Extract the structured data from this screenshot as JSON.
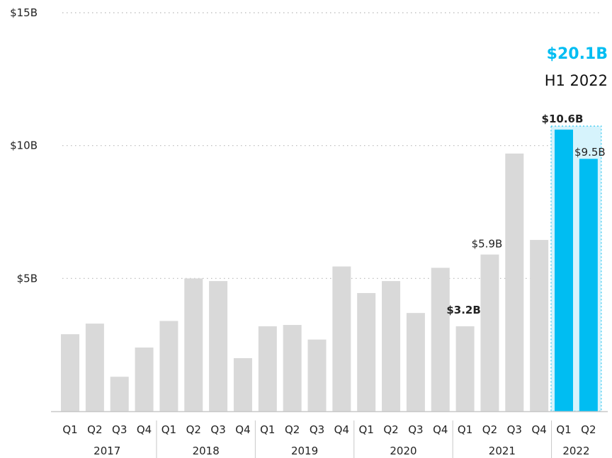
{
  "chart_data": {
    "type": "bar",
    "ylim": [
      0,
      15
    ],
    "y_ticks": [
      {
        "value": 5,
        "label": "$5B"
      },
      {
        "value": 10,
        "label": "$10B"
      },
      {
        "value": 15,
        "label": "$15B"
      }
    ],
    "grid": true,
    "categories": [
      {
        "quarter": "Q1",
        "year": "2017"
      },
      {
        "quarter": "Q2",
        "year": "2017"
      },
      {
        "quarter": "Q3",
        "year": "2017"
      },
      {
        "quarter": "Q4",
        "year": "2017"
      },
      {
        "quarter": "Q1",
        "year": "2018"
      },
      {
        "quarter": "Q2",
        "year": "2018"
      },
      {
        "quarter": "Q3",
        "year": "2018"
      },
      {
        "quarter": "Q4",
        "year": "2018"
      },
      {
        "quarter": "Q1",
        "year": "2019"
      },
      {
        "quarter": "Q2",
        "year": "2019"
      },
      {
        "quarter": "Q3",
        "year": "2019"
      },
      {
        "quarter": "Q4",
        "year": "2019"
      },
      {
        "quarter": "Q1",
        "year": "2020"
      },
      {
        "quarter": "Q2",
        "year": "2020"
      },
      {
        "quarter": "Q3",
        "year": "2020"
      },
      {
        "quarter": "Q4",
        "year": "2020"
      },
      {
        "quarter": "Q1",
        "year": "2021"
      },
      {
        "quarter": "Q2",
        "year": "2021"
      },
      {
        "quarter": "Q3",
        "year": "2021"
      },
      {
        "quarter": "Q4",
        "year": "2021"
      },
      {
        "quarter": "Q1",
        "year": "2022"
      },
      {
        "quarter": "Q2",
        "year": "2022"
      }
    ],
    "years": [
      "2017",
      "2018",
      "2019",
      "2020",
      "2021",
      "2022"
    ],
    "values": [
      2.9,
      3.3,
      1.3,
      2.4,
      3.4,
      5.0,
      4.9,
      2.0,
      3.2,
      3.25,
      2.7,
      5.45,
      4.45,
      4.9,
      3.7,
      5.4,
      3.2,
      5.9,
      9.7,
      6.45,
      10.6,
      9.5
    ],
    "highlighted": [
      20,
      21
    ],
    "data_labels": [
      {
        "index": 16,
        "text": "$3.2B",
        "bold": true
      },
      {
        "index": 17,
        "text": "$5.9B",
        "bold": false
      },
      {
        "index": 20,
        "text": "$10.6B",
        "bold": true
      },
      {
        "index": 21,
        "text": "$9.5B",
        "bold": false
      }
    ],
    "annotation": {
      "value": "$20.1B",
      "period": "H1 2022"
    },
    "colors": {
      "bar": "#d9d9d9",
      "highlight": "#00bdf2",
      "highlight_box": "#d6f3fc",
      "highlight_border": "#33c8f0",
      "grid": "#b8b8b8",
      "axis": "#c8c8c8",
      "text": "#222222"
    }
  }
}
